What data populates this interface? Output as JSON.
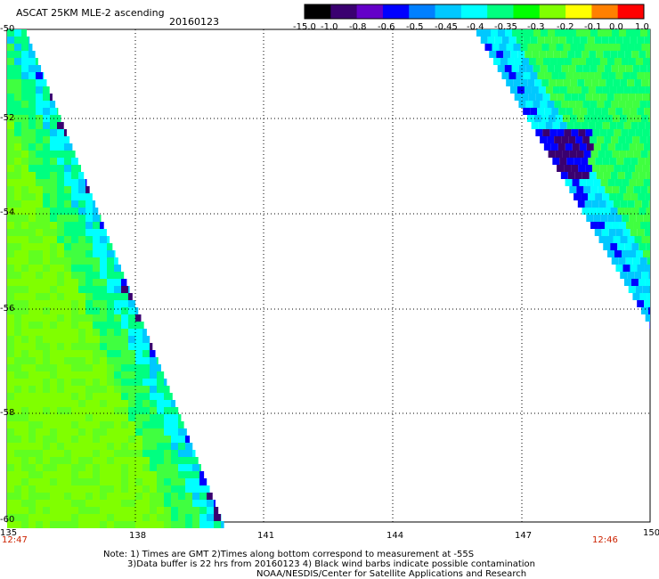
{
  "header": {
    "title": "ASCAT 25KM MLE-2 ascending",
    "date": "20160123"
  },
  "colorbar": {
    "labels": [
      "-15.0",
      "-1.0",
      "-0.8",
      "-0.6",
      "-0.5",
      "-0.45",
      "-0.4",
      "-0.35",
      "-0.3",
      "-0.2",
      "-0.1",
      "0.0",
      "1.0"
    ],
    "colors": [
      "#000000",
      "#3a0070",
      "#6400c8",
      "#0000ff",
      "#0080ff",
      "#00c8ff",
      "#00ffff",
      "#00ff80",
      "#00ff00",
      "#80ff00",
      "#ffff00",
      "#ff8000",
      "#ff0000"
    ]
  },
  "axes": {
    "x_ticks": [
      "135",
      "138",
      "141",
      "144",
      "147",
      "150"
    ],
    "y_ticks": [
      "-50",
      "-52",
      "-54",
      "-56",
      "-58",
      "-60"
    ]
  },
  "times": {
    "left": "12:47",
    "right": "12:46"
  },
  "notes": {
    "line1": "Note: 1) Times are GMT 2)Times along bottom correspond to measurement at -55S",
    "line2": "3)Data buffer is 22 hrs from 20160123 4) Black wind barbs indicate possible contamination",
    "line3": "NOAA/NESDIS/Center for Satellite Applications and Research"
  }
}
